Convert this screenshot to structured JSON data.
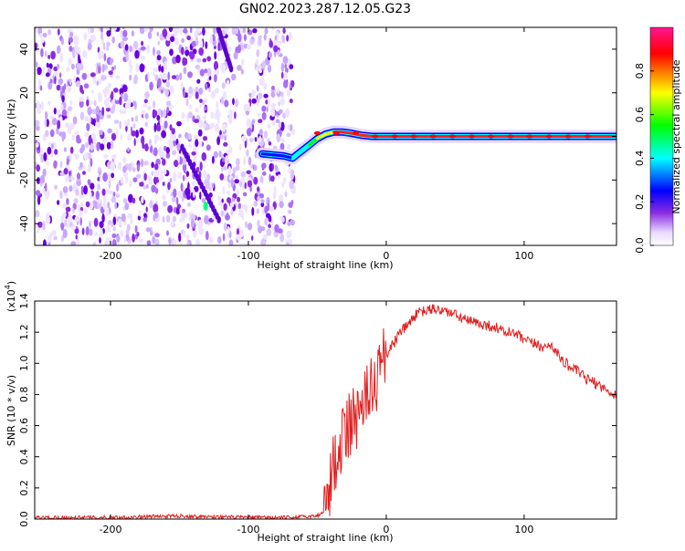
{
  "title": "GN02.2023.287.12.05.G23",
  "colors": {
    "ridge_low": "#0000ff",
    "ridge_mid": "#00ff00",
    "ridge_high": "#ff0000",
    "noise": "#8a2be2",
    "snr_line": "#e02020"
  },
  "chart_data": [
    {
      "type": "heatmap",
      "title": "GN02.2023.287.12.05.G23",
      "xlabel": "Height of straight line (km)",
      "ylabel": "Frequency (Hz)",
      "xlim": [
        -255,
        167
      ],
      "ylim": [
        -50,
        50
      ],
      "xticks": [
        -200,
        -100,
        0,
        100
      ],
      "xtick_labels": [
        "-200",
        "-100",
        "0",
        "100"
      ],
      "yticks": [
        -40,
        -20,
        0,
        20,
        40
      ],
      "ytick_labels": [
        "-40",
        "-20",
        "0",
        "20",
        "40"
      ],
      "noise_region_x": [
        -255,
        -67
      ],
      "ridge": {
        "x": [
          -90,
          -82,
          -74,
          -68,
          -62,
          -56,
          -50,
          -44,
          -38,
          -32,
          -26,
          -18,
          -10,
          0,
          20,
          40,
          60,
          80,
          100,
          120,
          140,
          167
        ],
        "frequency": [
          -8,
          -8.5,
          -9,
          -10,
          -7,
          -4,
          -1,
          1,
          2,
          2,
          1.5,
          0.5,
          0,
          0,
          0,
          0,
          0,
          0,
          0,
          0,
          0,
          0
        ],
        "amplitude": [
          0.2,
          0.2,
          0.25,
          0.3,
          0.35,
          0.5,
          0.6,
          0.7,
          0.8,
          0.85,
          0.85,
          0.85,
          0.85,
          0.85,
          0.9,
          0.85,
          0.8,
          0.85,
          0.85,
          0.85,
          0.8,
          0.7
        ]
      },
      "colorbar": {
        "label": "Normalized spectral amplitude",
        "range": [
          0,
          1
        ],
        "ticks": [
          0.0,
          0.2,
          0.4,
          0.6,
          0.8
        ],
        "tick_labels": [
          "0.0",
          "0.2",
          "0.4",
          "0.6",
          "0.8"
        ],
        "colormap": [
          "#ffffff",
          "#e8d8ff",
          "#8a2be2",
          "#0000ff",
          "#00ffff",
          "#00ff00",
          "#ffff00",
          "#ff0000",
          "#ff1493"
        ]
      }
    },
    {
      "type": "line",
      "xlabel": "Height of straight line (km)",
      "ylabel": "SNR (10 * v/v)",
      "y_multiplier": "(x10",
      "y_multiplier_exp": "4",
      "y_multiplier_close": ")",
      "xlim": [
        -255,
        167
      ],
      "ylim": [
        0,
        1.4
      ],
      "xticks": [
        -200,
        -100,
        0,
        100
      ],
      "xtick_labels": [
        "-200",
        "-100",
        "0",
        "100"
      ],
      "yticks": [
        0.0,
        0.2,
        0.4,
        0.6,
        0.8,
        1.0,
        1.2,
        1.4
      ],
      "ytick_labels": [
        "0.0",
        "0.2",
        "0.4",
        "0.6",
        "0.8",
        "1.0",
        "1.2",
        "1.4"
      ],
      "series": [
        {
          "x": [
            -255,
            -200,
            -150,
            -100,
            -70,
            -50,
            -45,
            -42,
            -38,
            -35,
            -30,
            -25,
            -20,
            -15,
            -10,
            -5,
            0,
            5,
            10,
            15,
            20,
            25,
            30,
            35,
            40,
            45,
            50,
            55,
            60,
            65,
            70,
            75,
            80,
            85,
            90,
            95,
            100,
            105,
            110,
            115,
            120,
            125,
            130,
            135,
            140,
            145,
            150,
            155,
            160,
            167
          ],
          "y": [
            0.01,
            0.01,
            0.02,
            0.01,
            0.01,
            0.02,
            0.05,
            0.15,
            0.35,
            0.45,
            0.55,
            0.62,
            0.68,
            0.75,
            0.85,
            0.95,
            1.05,
            1.12,
            1.2,
            1.24,
            1.3,
            1.33,
            1.34,
            1.35,
            1.34,
            1.33,
            1.31,
            1.29,
            1.27,
            1.26,
            1.25,
            1.24,
            1.23,
            1.2,
            1.2,
            1.18,
            1.15,
            1.13,
            1.12,
            1.1,
            1.12,
            1.05,
            1.0,
            0.97,
            0.94,
            0.9,
            0.88,
            0.86,
            0.82,
            0.8
          ]
        }
      ]
    }
  ]
}
